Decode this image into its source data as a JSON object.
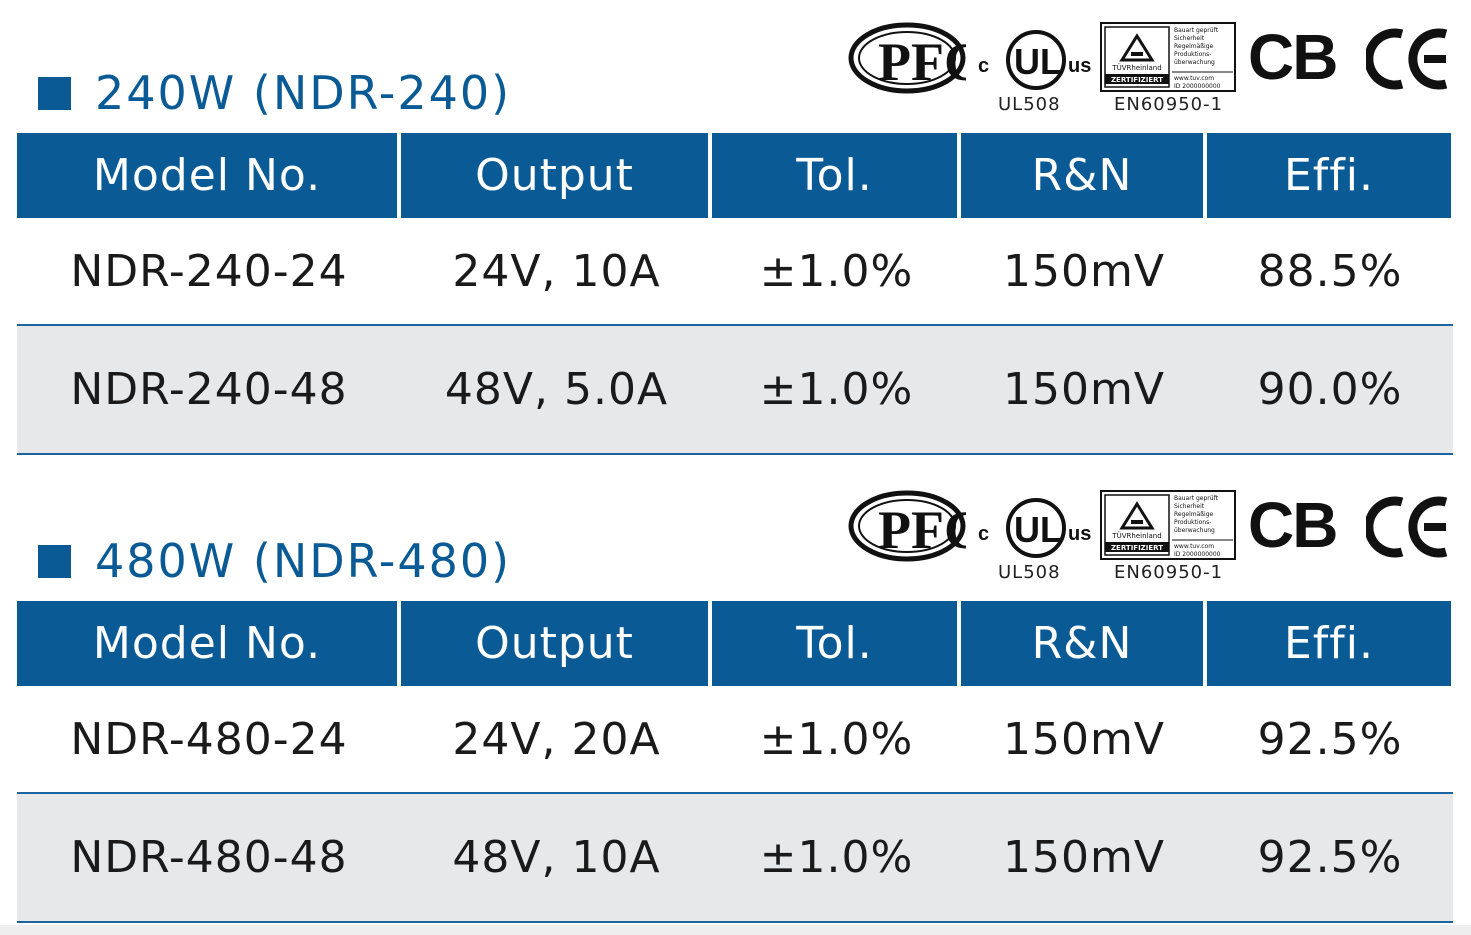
{
  "colors": {
    "accent": "#0a5a96",
    "row_alt": "#e7e8ea"
  },
  "certifications": {
    "pfc": "PFC",
    "ul_c": "c",
    "ul_us": "us",
    "ul_label": "UL508",
    "tuv_brand": "TÜVRheinland",
    "tuv_badge": "ZERTIFIZIERT",
    "tuv_lines": [
      "Bauart geprüft",
      "Sicherheit",
      "Regelmäßige",
      "Produktions-",
      "überwachung"
    ],
    "tuv_url": "www.tuv.com",
    "tuv_id": "ID 2000000000",
    "tuv_label": "EN60950-1",
    "cb": "CB"
  },
  "headers": [
    "Model No.",
    "Output",
    "Tol.",
    "R&N",
    "Effi."
  ],
  "sections": [
    {
      "title": "240W (NDR-240)",
      "rows": [
        [
          "NDR-240-24",
          "24V, 10A",
          "±1.0%",
          "150mV",
          "88.5%"
        ],
        [
          "NDR-240-48",
          "48V, 5.0A",
          "±1.0%",
          "150mV",
          "90.0%"
        ]
      ]
    },
    {
      "title": "480W (NDR-480)",
      "rows": [
        [
          "NDR-480-24",
          "24V, 20A",
          "±1.0%",
          "150mV",
          "92.5%"
        ],
        [
          "NDR-480-48",
          "48V, 10A",
          "±1.0%",
          "150mV",
          "92.5%"
        ]
      ]
    }
  ]
}
